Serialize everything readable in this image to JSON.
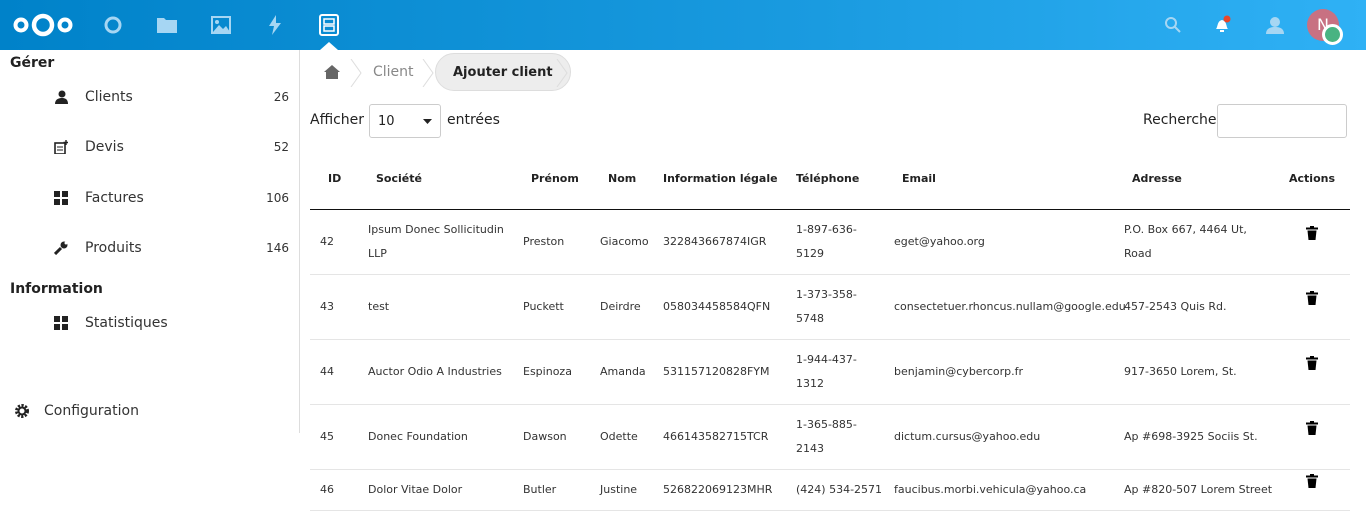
{
  "header": {
    "apps": [
      "dashboard",
      "files",
      "photos",
      "activity",
      "facturation"
    ],
    "avatar_initial": "N",
    "colors": {
      "brand": "#0082c9",
      "notification": "#e9472b",
      "status": "#49b382",
      "avatar": "#c87182"
    }
  },
  "sidebar": {
    "section1": "Gérer",
    "items": [
      {
        "label": "Clients",
        "count": "26",
        "icon": "user-icon"
      },
      {
        "label": "Devis",
        "count": "52",
        "icon": "quote-icon"
      },
      {
        "label": "Factures",
        "count": "106",
        "icon": "grid-icon"
      },
      {
        "label": "Produits",
        "count": "146",
        "icon": "wrench-icon"
      }
    ],
    "section2": "Information",
    "info_items": [
      {
        "label": "Statistiques",
        "icon": "grid-icon"
      }
    ],
    "settings": "Configuration"
  },
  "breadcrumb": {
    "home": "home",
    "client": "Client",
    "add_client": "Ajouter client"
  },
  "table_controls": {
    "show_label": "Afficher",
    "page_size": "10",
    "entries_label": "entrées",
    "search_label": "Recherche",
    "search_value": ""
  },
  "table": {
    "columns": [
      "ID",
      "Société",
      "Prénom",
      "Nom",
      "Information légale",
      "Téléphone",
      "Email",
      "Adresse",
      "Actions"
    ],
    "rows": [
      [
        "42",
        "Ipsum Donec Sollicitudin LLP",
        "Preston",
        "Giacomo",
        "322843667874IGR",
        "1-897-636-5129",
        "eget@yahoo.org",
        "P.O. Box 667, 4464 Ut, Road"
      ],
      [
        "43",
        "test",
        "Puckett",
        "Deirdre",
        "058034458584QFN",
        "1-373-358-5748",
        "consectetuer.rhoncus.nullam@google.edu",
        "457-2543 Quis Rd."
      ],
      [
        "44",
        "Auctor Odio A Industries",
        "Espinoza",
        "Amanda",
        "531157120828FYM",
        "1-944-437-1312",
        "benjamin@cybercorp.fr",
        "917-3650 Lorem, St."
      ],
      [
        "45",
        "Donec Foundation",
        "Dawson",
        "Odette",
        "466143582715TCR",
        "1-365-885-2143",
        "dictum.cursus@yahoo.edu",
        "Ap #698-3925 Sociis St."
      ],
      [
        "46",
        "Dolor Vitae Dolor",
        "Butler",
        "Justine",
        "526822069123MHR",
        "(424) 534-2571",
        "faucibus.morbi.vehicula@yahoo.ca",
        "Ap #820-507 Lorem Street"
      ]
    ]
  }
}
